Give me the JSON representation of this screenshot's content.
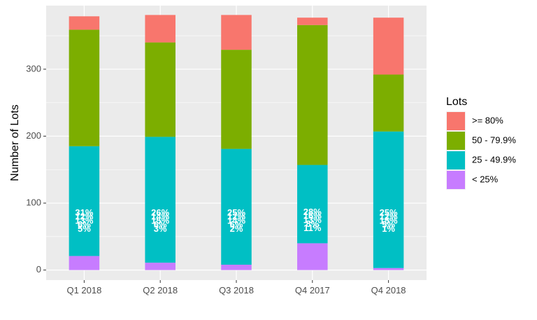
{
  "chart_data": {
    "type": "bar",
    "stacked": true,
    "title": "",
    "xlabel": "",
    "ylabel": "Number of Lots",
    "categories": [
      "Q1 2018",
      "Q2 2018",
      "Q3 2018",
      "Q4 2017",
      "Q4 2018"
    ],
    "ylim": [
      -15,
      395
    ],
    "yticks": [
      0,
      100,
      200,
      300
    ],
    "grid": true,
    "legend": {
      "title": "Lots",
      "placement": "right"
    },
    "series": [
      {
        "name": "< 25%",
        "color": "#C77CFF",
        "values": [
          21,
          11,
          8,
          40,
          3
        ],
        "label_text": [
          "5%",
          "3%",
          "2%",
          "11%",
          "1%"
        ]
      },
      {
        "name": "25 - 49.9%",
        "color": "#00BFC4",
        "values": [
          164,
          188,
          173,
          117,
          204
        ],
        "label_text": [
          "13%",
          "15%",
          "14%",
          "13%",
          "15%"
        ]
      },
      {
        "name": "50 - 79.9%",
        "color": "#7CAE00",
        "values": [
          174,
          141,
          148,
          209,
          85
        ],
        "label_text": [
          "31%",
          "26%",
          "25%",
          "28%",
          "25%"
        ]
      },
      {
        "name": ">= 80%",
        "color": "#F8766D",
        "values": [
          20,
          41,
          52,
          11,
          85
        ],
        "label_text": [
          "12%",
          "14%",
          "12%",
          "16%",
          "12%"
        ]
      }
    ],
    "bar_label_stack_y": [
      [
        85,
        79,
        73,
        67,
        61
      ],
      [
        85,
        79,
        73,
        67,
        61
      ],
      [
        85,
        79,
        73,
        67,
        61
      ],
      [
        86,
        80,
        74,
        68,
        62
      ],
      [
        85,
        79,
        73,
        67,
        61
      ]
    ],
    "bar_label_extra_text": [
      "6%",
      "6%",
      "6%",
      "8%",
      "5%"
    ]
  }
}
